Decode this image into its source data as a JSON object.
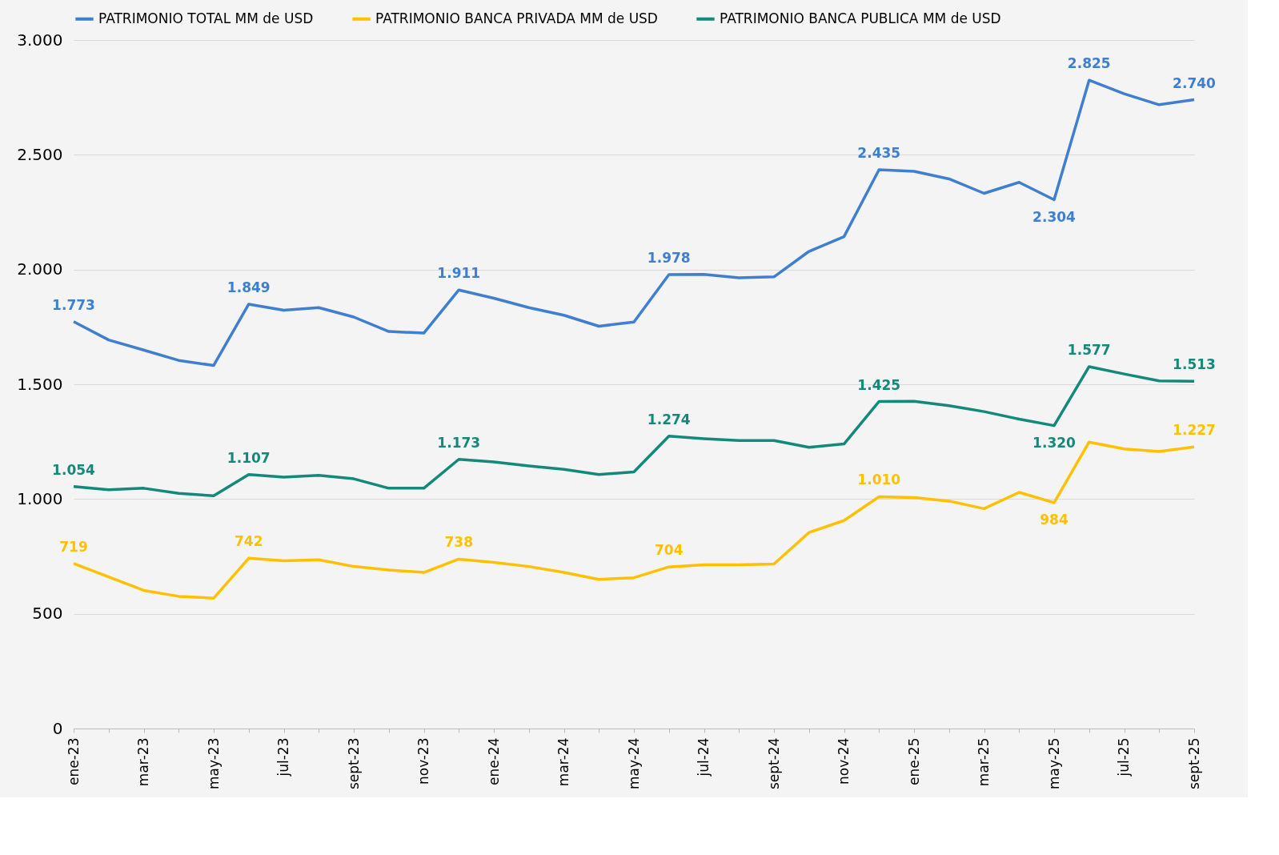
{
  "chart_data": {
    "type": "line",
    "categories": [
      "ene-23",
      null,
      "mar-23",
      null,
      "may-23",
      null,
      "jul-23",
      null,
      "sept-23",
      null,
      "nov-23",
      null,
      "ene-24",
      null,
      "mar-24",
      null,
      "may-24",
      null,
      "jul-24",
      null,
      "sept-24",
      null,
      "nov-24",
      null,
      "ene-25",
      null,
      "mar-25",
      null,
      "may-25",
      null,
      "jul-25",
      null,
      "sept-25"
    ],
    "series": [
      {
        "name": "PATRIMONIO TOTAL MM de USD",
        "color": "#3f7fcf",
        "values": [
          1773,
          1693,
          1649,
          1604,
          1582,
          1849,
          1823,
          1834,
          1793,
          1730,
          1723,
          1911,
          1875,
          1834,
          1801,
          1753,
          1771,
          1978,
          1979,
          1964,
          1968,
          2079,
          2143,
          2435,
          2428,
          2395,
          2332,
          2380,
          2304,
          2825,
          2766,
          2718,
          2740
        ],
        "value_labels": [
          "1.773",
          null,
          null,
          null,
          null,
          "1.849",
          null,
          null,
          null,
          null,
          null,
          "1.911",
          null,
          null,
          null,
          null,
          null,
          "1.978",
          null,
          null,
          null,
          null,
          null,
          "2.435",
          null,
          null,
          null,
          null,
          "2.304",
          "2.825",
          null,
          null,
          "2.740"
        ]
      },
      {
        "name": "PATRIMONIO BANCA PRIVADA MM de USD",
        "color": "#ffc000",
        "values": [
          719,
          661,
          602,
          576,
          568,
          742,
          731,
          735,
          706,
          691,
          680,
          738,
          724,
          706,
          680,
          650,
          657,
          704,
          713,
          713,
          717,
          854,
          906,
          1010,
          1006,
          991,
          958,
          1029,
          984,
          1248,
          1218,
          1207,
          1227
        ],
        "value_labels": [
          "719",
          null,
          null,
          null,
          null,
          "742",
          null,
          null,
          null,
          null,
          null,
          "738",
          null,
          null,
          null,
          null,
          null,
          "704",
          null,
          null,
          null,
          null,
          null,
          "1.010",
          null,
          null,
          null,
          null,
          "984",
          null,
          null,
          null,
          "1.227"
        ]
      },
      {
        "name": "PATRIMONIO BANCA PUBLICA MM de USD",
        "color": "#13897a",
        "values": [
          1054,
          1040,
          1047,
          1025,
          1014,
          1107,
          1095,
          1103,
          1088,
          1047,
          1047,
          1173,
          1162,
          1144,
          1129,
          1107,
          1118,
          1274,
          1263,
          1255,
          1255,
          1225,
          1240,
          1425,
          1426,
          1407,
          1381,
          1348,
          1320,
          1577,
          1545,
          1515,
          1513
        ],
        "value_labels": [
          "1.054",
          null,
          null,
          null,
          null,
          "1.107",
          null,
          null,
          null,
          null,
          null,
          "1.173",
          null,
          null,
          null,
          null,
          null,
          "1.274",
          null,
          null,
          null,
          null,
          null,
          "1.425",
          null,
          null,
          null,
          null,
          "1.320",
          "1.577",
          null,
          null,
          "1.513"
        ]
      }
    ],
    "ylim": [
      0,
      3000
    ],
    "yticks": [
      {
        "value": 0,
        "label": "0"
      },
      {
        "value": 500,
        "label": "500"
      },
      {
        "value": 1000,
        "label": "1.000"
      },
      {
        "value": 1500,
        "label": "1.500"
      },
      {
        "value": 2000,
        "label": "2.000"
      },
      {
        "value": 2500,
        "label": "2.500"
      },
      {
        "value": 3000,
        "label": "3.000"
      }
    ],
    "grid": "y",
    "legend": "top",
    "marker": "none",
    "line_style": "solid"
  }
}
